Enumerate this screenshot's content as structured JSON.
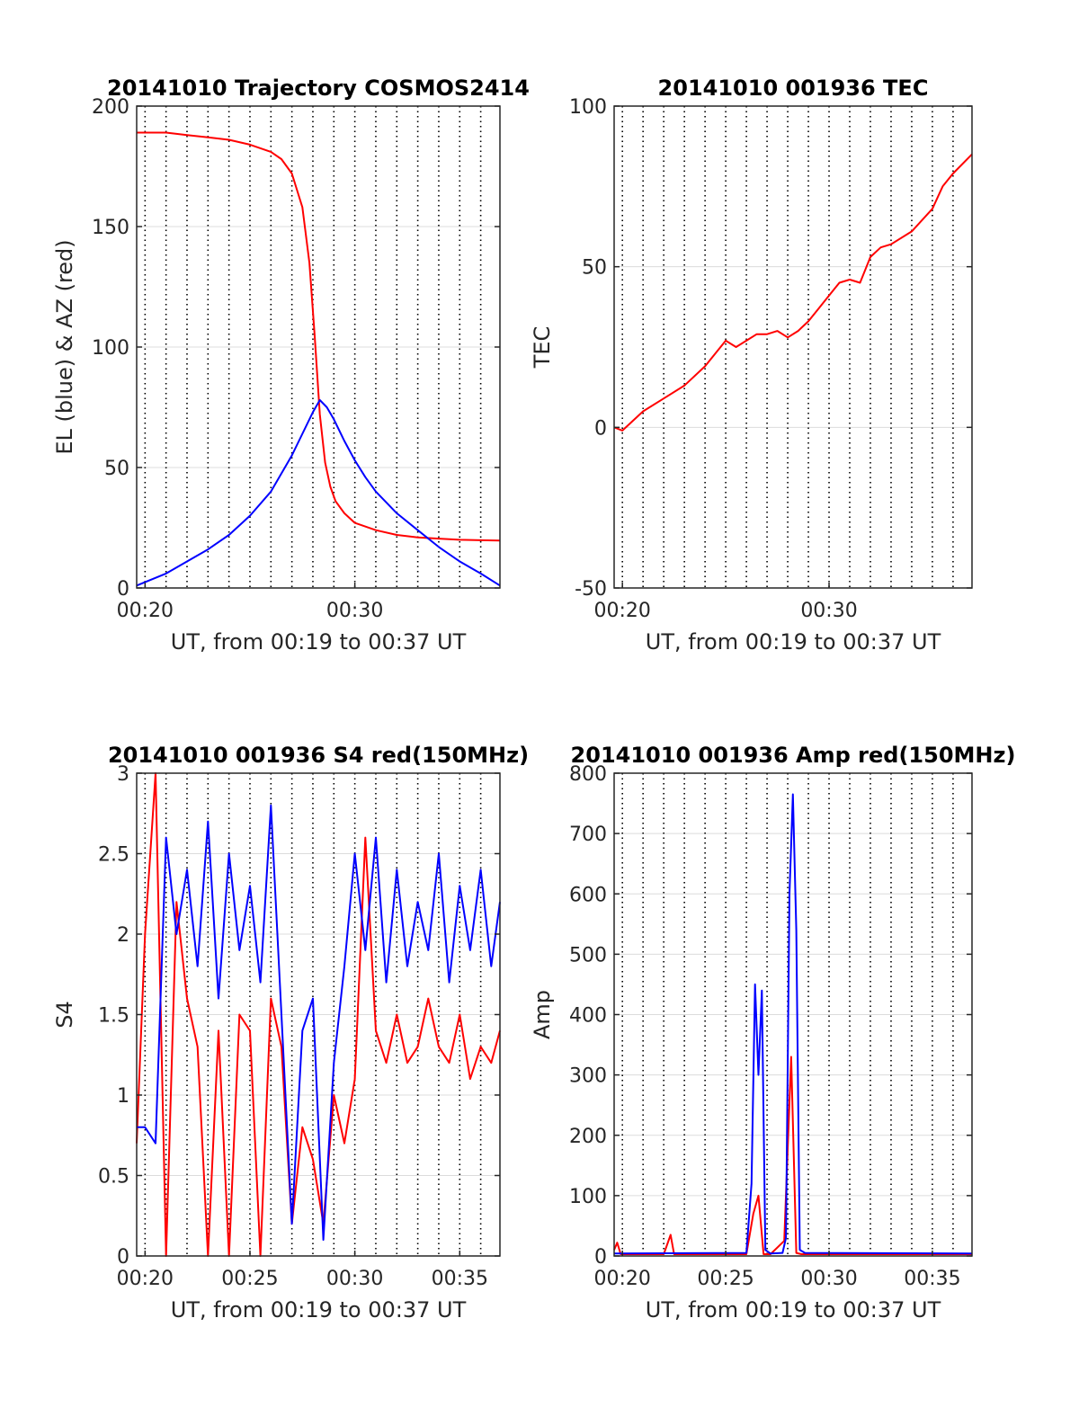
{
  "chart_data": [
    {
      "type": "line",
      "title": "20141010 Trajectory COSMOS2414",
      "xlabel": "UT, from 00:19 to 00:37 UT",
      "ylabel": "EL (blue) & AZ (red)",
      "xlim": [
        "00:19:36",
        "00:36:55"
      ],
      "ylim": [
        0,
        200
      ],
      "x_ticks": [
        "00:20",
        "00:30"
      ],
      "y_ticks": [
        "0",
        "50",
        "100",
        "150",
        "200"
      ],
      "grid": "y major, x dotted minute lines",
      "series": [
        {
          "color": "#ff0000",
          "x": [
            "00:19:36",
            "00:21:00",
            "00:22:00",
            "00:23:00",
            "00:24:00",
            "00:25:00",
            "00:26:00",
            "00:26:30",
            "00:27:00",
            "00:27:30",
            "00:27:50",
            "00:28:05",
            "00:28:20",
            "00:28:35",
            "00:28:50",
            "00:29:05",
            "00:29:30",
            "00:30:00",
            "00:31:00",
            "00:32:00",
            "00:33:00",
            "00:34:00",
            "00:35:00",
            "00:36:00",
            "00:36:55"
          ],
          "values": [
            189,
            189,
            188,
            187,
            186,
            184,
            181,
            178,
            172,
            158,
            135,
            105,
            72,
            52,
            42,
            36,
            31,
            27,
            24,
            22,
            21,
            20.5,
            20,
            19.8,
            19.7
          ]
        },
        {
          "color": "#0000ff",
          "x": [
            "00:19:36",
            "00:21:00",
            "00:22:00",
            "00:23:00",
            "00:24:00",
            "00:25:00",
            "00:26:00",
            "00:27:00",
            "00:27:30",
            "00:28:00",
            "00:28:20",
            "00:28:40",
            "00:29:00",
            "00:29:30",
            "00:30:00",
            "00:30:30",
            "00:31:00",
            "00:32:00",
            "00:33:00",
            "00:34:00",
            "00:35:00",
            "00:36:00",
            "00:36:55"
          ],
          "values": [
            1,
            6,
            11,
            16,
            22,
            30,
            40,
            55,
            64,
            73,
            78,
            75,
            70,
            61,
            53,
            46,
            40,
            31,
            24,
            17,
            11,
            6,
            1
          ]
        }
      ]
    },
    {
      "type": "line",
      "title": "20141010 001936 TEC",
      "xlabel": "UT, from 00:19 to 00:37 UT",
      "ylabel": "TEC",
      "xlim": [
        "00:19:36",
        "00:36:55"
      ],
      "ylim": [
        -50,
        100
      ],
      "x_ticks": [
        "00:20",
        "00:30"
      ],
      "y_ticks": [
        "-50",
        "0",
        "50",
        "100"
      ],
      "grid": "y major, x dotted minute lines",
      "series": [
        {
          "color": "#ff0000",
          "x": [
            "00:19:36",
            "00:20:00",
            "00:21:00",
            "00:22:00",
            "00:23:00",
            "00:24:00",
            "00:24:30",
            "00:25:00",
            "00:25:30",
            "00:26:00",
            "00:26:30",
            "00:27:00",
            "00:27:30",
            "00:28:00",
            "00:28:30",
            "00:29:00",
            "00:29:30",
            "00:30:00",
            "00:30:30",
            "00:31:00",
            "00:31:30",
            "00:32:00",
            "00:32:30",
            "00:33:00",
            "00:34:00",
            "00:35:00",
            "00:35:30",
            "00:36:00",
            "00:36:55"
          ],
          "values": [
            0,
            -1,
            5,
            9,
            13,
            19,
            23,
            27,
            25,
            27,
            29,
            29,
            30,
            28,
            30,
            33,
            37,
            41,
            45,
            46,
            45,
            53,
            56,
            57,
            61,
            68,
            75,
            79,
            85
          ]
        }
      ]
    },
    {
      "type": "line",
      "title": "20141010 001936 S4 red(150MHz)",
      "xlabel": "UT, from 00:19 to 00:37 UT",
      "ylabel": "S4",
      "xlim": [
        "00:19:36",
        "00:36:55"
      ],
      "ylim": [
        0,
        3
      ],
      "x_ticks": [
        "00:20",
        "00:25",
        "00:30",
        "00:35"
      ],
      "y_ticks": [
        "0",
        "0.5",
        "1",
        "1.5",
        "2",
        "2.5",
        "3"
      ],
      "grid": "y major, x dotted minute lines",
      "series": [
        {
          "color": "#ff0000",
          "x": [
            "00:19:36",
            "00:20:00",
            "00:20:30",
            "00:21:00",
            "00:21:30",
            "00:22:00",
            "00:22:30",
            "00:23:00",
            "00:23:30",
            "00:24:00",
            "00:24:30",
            "00:25:00",
            "00:25:30",
            "00:26:00",
            "00:26:30",
            "00:27:00",
            "00:27:30",
            "00:28:00",
            "00:28:30",
            "00:29:00",
            "00:29:30",
            "00:30:00",
            "00:30:30",
            "00:31:00",
            "00:31:30",
            "00:32:00",
            "00:32:30",
            "00:33:00",
            "00:33:30",
            "00:34:00",
            "00:34:30",
            "00:35:00",
            "00:35:30",
            "00:36:00",
            "00:36:30",
            "00:36:55"
          ],
          "values": [
            0.7,
            2.0,
            3.0,
            0.0,
            2.2,
            1.6,
            1.3,
            0.0,
            1.4,
            0.0,
            1.5,
            1.4,
            0.0,
            1.6,
            1.3,
            0.2,
            0.8,
            0.6,
            0.2,
            1.0,
            0.7,
            1.1,
            2.6,
            1.4,
            1.2,
            1.5,
            1.2,
            1.3,
            1.6,
            1.3,
            1.2,
            1.5,
            1.1,
            1.3,
            1.2,
            1.4
          ]
        },
        {
          "color": "#0000ff",
          "x": [
            "00:19:36",
            "00:20:00",
            "00:20:30",
            "00:21:00",
            "00:21:30",
            "00:22:00",
            "00:22:30",
            "00:23:00",
            "00:23:30",
            "00:24:00",
            "00:24:30",
            "00:25:00",
            "00:25:30",
            "00:26:00",
            "00:26:30",
            "00:27:00",
            "00:27:30",
            "00:28:00",
            "00:28:30",
            "00:29:00",
            "00:29:30",
            "00:30:00",
            "00:30:30",
            "00:31:00",
            "00:31:30",
            "00:32:00",
            "00:32:30",
            "00:33:00",
            "00:33:30",
            "00:34:00",
            "00:34:30",
            "00:35:00",
            "00:35:30",
            "00:36:00",
            "00:36:30",
            "00:36:55"
          ],
          "values": [
            0.8,
            0.8,
            0.7,
            2.6,
            2.0,
            2.4,
            1.8,
            2.7,
            1.6,
            2.5,
            1.9,
            2.3,
            1.7,
            2.8,
            1.5,
            0.2,
            1.4,
            1.6,
            0.1,
            1.2,
            1.8,
            2.5,
            1.9,
            2.6,
            1.7,
            2.4,
            1.8,
            2.2,
            1.9,
            2.5,
            1.7,
            2.3,
            1.9,
            2.4,
            1.8,
            2.2
          ]
        }
      ]
    },
    {
      "type": "line",
      "title": "20141010 001936 Amp red(150MHz)",
      "xlabel": "UT, from 00:19 to 00:37 UT",
      "ylabel": "Amp",
      "xlim": [
        "00:19:36",
        "00:36:55"
      ],
      "ylim": [
        0,
        800
      ],
      "x_ticks": [
        "00:20",
        "00:25",
        "00:30",
        "00:35"
      ],
      "y_ticks": [
        "0",
        "100",
        "200",
        "300",
        "400",
        "500",
        "600",
        "700",
        "800"
      ],
      "grid": "y major, x dotted minute lines",
      "series": [
        {
          "color": "#ff0000",
          "x": [
            "00:19:36",
            "00:19:45",
            "00:19:55",
            "00:22:00",
            "00:22:20",
            "00:22:30",
            "00:26:00",
            "00:26:20",
            "00:26:35",
            "00:26:50",
            "00:27:10",
            "00:27:50",
            "00:28:00",
            "00:28:10",
            "00:28:25",
            "00:28:40",
            "00:29:00",
            "00:36:55"
          ],
          "values": [
            10,
            22,
            3,
            3,
            35,
            3,
            3,
            70,
            100,
            3,
            3,
            25,
            180,
            330,
            5,
            3,
            3,
            3
          ]
        },
        {
          "color": "#0000ff",
          "x": [
            "00:19:36",
            "00:26:00",
            "00:26:15",
            "00:26:25",
            "00:26:35",
            "00:26:45",
            "00:26:55",
            "00:27:10",
            "00:27:45",
            "00:27:55",
            "00:28:05",
            "00:28:15",
            "00:28:25",
            "00:28:35",
            "00:28:50",
            "00:36:55"
          ],
          "values": [
            4,
            5,
            120,
            450,
            300,
            440,
            10,
            4,
            5,
            30,
            600,
            765,
            540,
            10,
            5,
            4
          ]
        }
      ]
    }
  ]
}
